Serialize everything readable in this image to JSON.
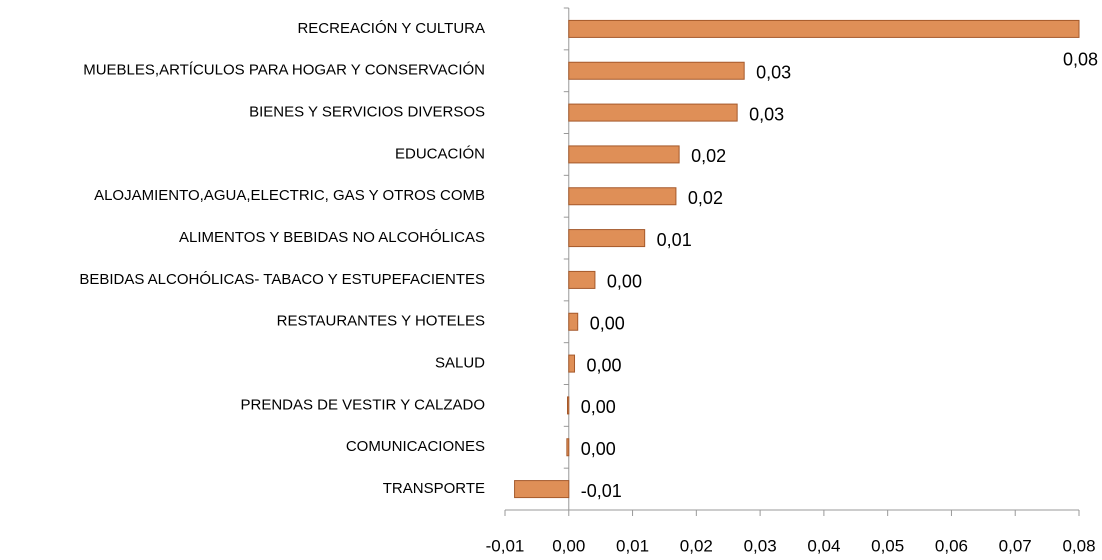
{
  "chart_data": {
    "type": "bar",
    "orientation": "horizontal",
    "categories": [
      "RECREACIÓN Y CULTURA",
      "MUEBLES,ARTÍCULOS PARA HOGAR Y CONSERVACIÓN",
      "BIENES Y SERVICIOS DIVERSOS",
      "EDUCACIÓN",
      "ALOJAMIENTO,AGUA,ELECTRIC, GAS Y OTROS COMB",
      "ALIMENTOS Y BEBIDAS NO ALCOHÓLICAS",
      "BEBIDAS ALCOHÓLICAS- TABACO Y ESTUPEFACIENTES",
      "RESTAURANTES Y HOTELES",
      "SALUD",
      "PRENDAS DE VESTIR Y CALZADO",
      "COMUNICACIONES",
      "TRANSPORTE"
    ],
    "values": [
      0.08,
      0.0275,
      0.0264,
      0.0173,
      0.0168,
      0.0119,
      0.0041,
      0.0014,
      0.0009,
      -0.0002,
      -0.0003,
      -0.0085
    ],
    "value_labels": [
      "0,08",
      "0,03",
      "0,03",
      "0,02",
      "0,02",
      "0,01",
      "0,00",
      "0,00",
      "0,00",
      "0,00",
      "0,00",
      "-0,01"
    ],
    "color": "#df8f57",
    "xlim": [
      -0.01,
      0.08
    ],
    "xticks": [
      {
        "value": -0.01,
        "label": "-0,01"
      },
      {
        "value": 0,
        "label": "0,00"
      },
      {
        "value": 0.01,
        "label": "0,01"
      },
      {
        "value": 0.02,
        "label": "0,02"
      },
      {
        "value": 0.03,
        "label": "0,03"
      },
      {
        "value": 0.04,
        "label": "0,04"
      },
      {
        "value": 0.05,
        "label": "0,05"
      },
      {
        "value": 0.06,
        "label": "0,06"
      },
      {
        "value": 0.07,
        "label": "0,07"
      },
      {
        "value": 0.08,
        "label": "0,08"
      }
    ],
    "grid": false
  }
}
